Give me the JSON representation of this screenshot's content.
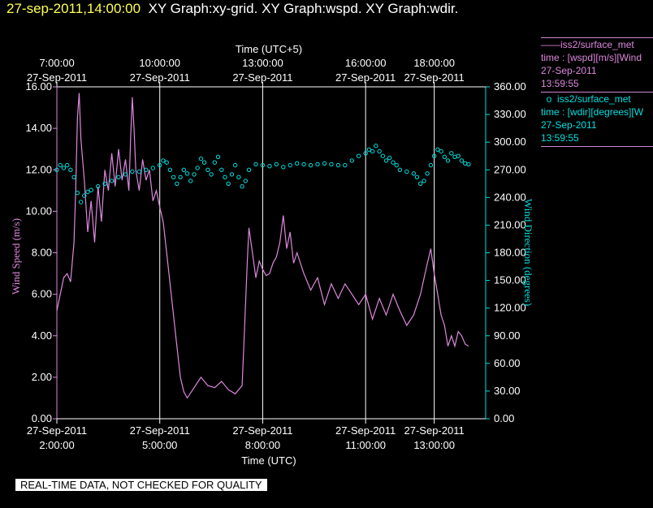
{
  "header": {
    "timestamp": "27-sep-2011,14:00:00",
    "titles": "XY Graph:xy-grid.  XY Graph:wspd.  XY Graph:wdir."
  },
  "legend": [
    {
      "marker": "——",
      "name": "iss2/surface_met",
      "var": "time : [wspd][m/s][Wind",
      "date": "27-Sep-2011",
      "time": "13:59:55",
      "color": "#dd88dd"
    },
    {
      "marker": "o",
      "name": "iss2/surface_met",
      "var": "time : [wdir][degrees][W",
      "date": "27-Sep-2011",
      "time": "13:59:55",
      "color": "#00e0e0"
    }
  ],
  "footer": {
    "qc_note": "REAL-TIME DATA, NOT CHECKED FOR QUALITY"
  },
  "chart_data": {
    "type": "line",
    "x_top_label": "Time (UTC+5)",
    "x_bottom_label": "Time (UTC)",
    "ylabel_left": "Wind Speed (m/s)",
    "ylabel_right": "Wind Direction (degrees)",
    "ylim_left": [
      0,
      16
    ],
    "ylim_right": [
      0,
      360
    ],
    "left_ticks": [
      "0.00",
      "2.00",
      "4.00",
      "6.00",
      "8.00",
      "10.00",
      "12.00",
      "14.00",
      "16.00"
    ],
    "right_ticks": [
      "0.00",
      "30.00",
      "60.00",
      "90.00",
      "120.00",
      "150.00",
      "180.00",
      "210.00",
      "240.00",
      "270.00",
      "300.00",
      "330.00",
      "360.00"
    ],
    "x_hours_utc_range": [
      1.0,
      13.5
    ],
    "grid": "vertical lines at labeled times",
    "bottom_ticks": [
      {
        "h": 1.0,
        "date": "27-Sep-2011",
        "time": "2:00:00"
      },
      {
        "h": 4.0,
        "date": "27-Sep-2011",
        "time": "5:00:00"
      },
      {
        "h": 7.0,
        "date": "27-Sep-2011",
        "time": "8:00:00"
      },
      {
        "h": 10.0,
        "date": "27-Sep-2011",
        "time": "11:00:00"
      },
      {
        "h": 12.0,
        "date": "27-Sep-2011",
        "time": "13:00:00"
      }
    ],
    "top_ticks": [
      {
        "h": 1.0,
        "time": "7:00:00",
        "date": "27-Sep-2011"
      },
      {
        "h": 4.0,
        "time": "10:00:00",
        "date": "27-Sep-2011"
      },
      {
        "h": 7.0,
        "time": "13:00:00",
        "date": "27-Sep-2011"
      },
      {
        "h": 10.0,
        "time": "16:00:00",
        "date": "27-Sep-2011"
      },
      {
        "h": 12.0,
        "time": "18:00:00",
        "date": "27-Sep-2011"
      }
    ],
    "series": [
      {
        "name": "iss2/surface_met wspd",
        "color": "#dd88dd",
        "style": "line",
        "axis": "left",
        "points": [
          [
            1.0,
            5.2
          ],
          [
            1.1,
            6.0
          ],
          [
            1.2,
            6.8
          ],
          [
            1.3,
            7.0
          ],
          [
            1.4,
            6.6
          ],
          [
            1.5,
            8.5
          ],
          [
            1.55,
            11.0
          ],
          [
            1.6,
            14.5
          ],
          [
            1.65,
            15.7
          ],
          [
            1.7,
            13.5
          ],
          [
            1.8,
            11.5
          ],
          [
            1.9,
            9.0
          ],
          [
            2.0,
            10.5
          ],
          [
            2.1,
            8.5
          ],
          [
            2.2,
            11.2
          ],
          [
            2.3,
            9.5
          ],
          [
            2.4,
            12.0
          ],
          [
            2.5,
            11.0
          ],
          [
            2.6,
            12.8
          ],
          [
            2.7,
            11.2
          ],
          [
            2.8,
            13.0
          ],
          [
            2.9,
            11.5
          ],
          [
            3.0,
            12.5
          ],
          [
            3.1,
            11.0
          ],
          [
            3.15,
            13.5
          ],
          [
            3.2,
            15.5
          ],
          [
            3.25,
            14.0
          ],
          [
            3.3,
            12.0
          ],
          [
            3.4,
            11.0
          ],
          [
            3.5,
            12.5
          ],
          [
            3.6,
            11.5
          ],
          [
            3.7,
            12.0
          ],
          [
            3.8,
            10.5
          ],
          [
            3.9,
            11.0
          ],
          [
            4.0,
            10.2
          ],
          [
            4.1,
            9.5
          ],
          [
            4.2,
            8.0
          ],
          [
            4.3,
            6.5
          ],
          [
            4.4,
            5.0
          ],
          [
            4.5,
            3.5
          ],
          [
            4.6,
            2.0
          ],
          [
            4.7,
            1.3
          ],
          [
            4.8,
            1.0
          ],
          [
            5.0,
            1.5
          ],
          [
            5.2,
            2.0
          ],
          [
            5.4,
            1.6
          ],
          [
            5.6,
            1.5
          ],
          [
            5.8,
            1.8
          ],
          [
            6.0,
            1.4
          ],
          [
            6.2,
            1.2
          ],
          [
            6.4,
            1.6
          ],
          [
            6.45,
            3.5
          ],
          [
            6.5,
            5.5
          ],
          [
            6.55,
            7.5
          ],
          [
            6.6,
            9.2
          ],
          [
            6.7,
            8.0
          ],
          [
            6.8,
            6.8
          ],
          [
            6.9,
            7.6
          ],
          [
            7.0,
            7.2
          ],
          [
            7.1,
            6.9
          ],
          [
            7.2,
            7.0
          ],
          [
            7.3,
            7.5
          ],
          [
            7.4,
            7.8
          ],
          [
            7.5,
            8.5
          ],
          [
            7.6,
            9.8
          ],
          [
            7.7,
            8.2
          ],
          [
            7.8,
            9.0
          ],
          [
            7.9,
            7.5
          ],
          [
            8.0,
            8.0
          ],
          [
            8.2,
            7.0
          ],
          [
            8.4,
            6.2
          ],
          [
            8.6,
            6.8
          ],
          [
            8.8,
            5.5
          ],
          [
            9.0,
            6.5
          ],
          [
            9.2,
            5.8
          ],
          [
            9.4,
            6.5
          ],
          [
            9.6,
            6.0
          ],
          [
            9.8,
            5.5
          ],
          [
            10.0,
            6.0
          ],
          [
            10.2,
            4.8
          ],
          [
            10.4,
            5.8
          ],
          [
            10.6,
            5.0
          ],
          [
            10.8,
            6.0
          ],
          [
            11.0,
            5.2
          ],
          [
            11.2,
            4.5
          ],
          [
            11.4,
            5.0
          ],
          [
            11.6,
            6.0
          ],
          [
            11.8,
            7.5
          ],
          [
            11.9,
            8.2
          ],
          [
            12.0,
            7.0
          ],
          [
            12.1,
            6.0
          ],
          [
            12.2,
            5.0
          ],
          [
            12.3,
            4.5
          ],
          [
            12.4,
            3.5
          ],
          [
            12.5,
            4.0
          ],
          [
            12.6,
            3.5
          ],
          [
            12.7,
            4.2
          ],
          [
            12.8,
            4.0
          ],
          [
            12.9,
            3.6
          ],
          [
            13.0,
            3.5
          ]
        ]
      },
      {
        "name": "iss2/surface_met wdir",
        "color": "#00e0e0",
        "style": "markers",
        "axis": "right",
        "points": [
          [
            1.0,
            270
          ],
          [
            1.1,
            275
          ],
          [
            1.2,
            272
          ],
          [
            1.3,
            275
          ],
          [
            1.4,
            270
          ],
          [
            1.5,
            262
          ],
          [
            1.6,
            245
          ],
          [
            1.7,
            235
          ],
          [
            1.8,
            242
          ],
          [
            1.9,
            246
          ],
          [
            2.0,
            248
          ],
          [
            2.2,
            252
          ],
          [
            2.4,
            255
          ],
          [
            2.6,
            258
          ],
          [
            2.8,
            262
          ],
          [
            3.0,
            265
          ],
          [
            3.2,
            268
          ],
          [
            3.4,
            268
          ],
          [
            3.6,
            270
          ],
          [
            3.8,
            272
          ],
          [
            4.0,
            275
          ],
          [
            4.1,
            280
          ],
          [
            4.2,
            278
          ],
          [
            4.3,
            270
          ],
          [
            4.4,
            262
          ],
          [
            4.5,
            255
          ],
          [
            4.6,
            262
          ],
          [
            4.7,
            270
          ],
          [
            4.8,
            266
          ],
          [
            4.9,
            258
          ],
          [
            5.0,
            265
          ],
          [
            5.1,
            272
          ],
          [
            5.2,
            282
          ],
          [
            5.3,
            278
          ],
          [
            5.4,
            270
          ],
          [
            5.5,
            265
          ],
          [
            5.6,
            278
          ],
          [
            5.7,
            284
          ],
          [
            5.8,
            270
          ],
          [
            5.9,
            262
          ],
          [
            6.0,
            255
          ],
          [
            6.1,
            265
          ],
          [
            6.2,
            275
          ],
          [
            6.3,
            262
          ],
          [
            6.4,
            252
          ],
          [
            6.5,
            258
          ],
          [
            6.6,
            270
          ],
          [
            6.8,
            276
          ],
          [
            7.0,
            275
          ],
          [
            7.2,
            274
          ],
          [
            7.4,
            276
          ],
          [
            7.6,
            273
          ],
          [
            7.8,
            275
          ],
          [
            8.0,
            277
          ],
          [
            8.2,
            276
          ],
          [
            8.4,
            275
          ],
          [
            8.6,
            276
          ],
          [
            8.8,
            277
          ],
          [
            9.0,
            276
          ],
          [
            9.2,
            275
          ],
          [
            9.4,
            275
          ],
          [
            9.6,
            280
          ],
          [
            9.8,
            285
          ],
          [
            10.0,
            288
          ],
          [
            10.1,
            292
          ],
          [
            10.2,
            290
          ],
          [
            10.3,
            296
          ],
          [
            10.4,
            290
          ],
          [
            10.5,
            285
          ],
          [
            10.6,
            280
          ],
          [
            10.7,
            283
          ],
          [
            10.8,
            278
          ],
          [
            10.9,
            275
          ],
          [
            11.0,
            270
          ],
          [
            11.2,
            268
          ],
          [
            11.4,
            266
          ],
          [
            11.5,
            262
          ],
          [
            11.6,
            255
          ],
          [
            11.7,
            258
          ],
          [
            11.8,
            266
          ],
          [
            11.9,
            275
          ],
          [
            12.0,
            285
          ],
          [
            12.1,
            292
          ],
          [
            12.2,
            290
          ],
          [
            12.3,
            284
          ],
          [
            12.4,
            280
          ],
          [
            12.5,
            288
          ],
          [
            12.6,
            284
          ],
          [
            12.7,
            285
          ],
          [
            12.8,
            280
          ],
          [
            12.9,
            277
          ],
          [
            13.0,
            276
          ]
        ]
      }
    ]
  }
}
